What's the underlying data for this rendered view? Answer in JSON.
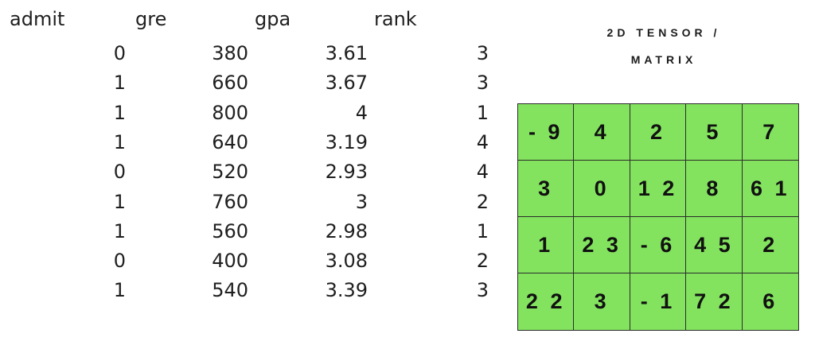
{
  "table": {
    "headers": [
      "admit",
      "gre",
      "gpa",
      "rank"
    ],
    "rows": [
      [
        "0",
        "380",
        "3.61",
        "3"
      ],
      [
        "1",
        "660",
        "3.67",
        "3"
      ],
      [
        "1",
        "800",
        "4",
        "1"
      ],
      [
        "1",
        "640",
        "3.19",
        "4"
      ],
      [
        "0",
        "520",
        "2.93",
        "4"
      ],
      [
        "1",
        "760",
        "3",
        "2"
      ],
      [
        "1",
        "560",
        "2.98",
        "1"
      ],
      [
        "0",
        "400",
        "3.08",
        "2"
      ],
      [
        "1",
        "540",
        "3.39",
        "3"
      ]
    ]
  },
  "matrix": {
    "title_line1": "2D TENSOR /",
    "title_line2": "MATRIX",
    "rows": [
      [
        "- 9",
        "4",
        "2",
        "5",
        "7"
      ],
      [
        "3",
        "0",
        "1 2",
        "8",
        "6 1"
      ],
      [
        "1",
        "2 3",
        "- 6",
        "4 5",
        "2"
      ],
      [
        "2 2",
        "3",
        "- 1",
        "7 2",
        "6"
      ]
    ]
  },
  "colors": {
    "cell_fill": "#83e35f",
    "grid_line": "#2b2b2b",
    "text": "#1f1f1f"
  }
}
